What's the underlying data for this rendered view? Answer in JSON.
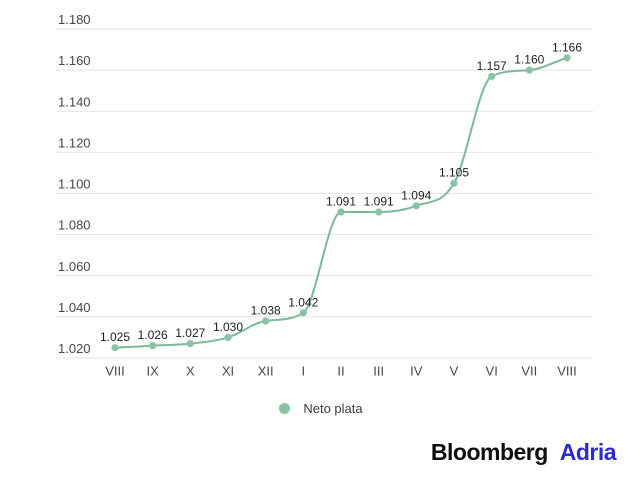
{
  "chart_data": {
    "type": "line",
    "title": "",
    "xlabel": "",
    "ylabel": "",
    "categories": [
      "VIII",
      "IX",
      "X",
      "XI",
      "XII",
      "I",
      "II",
      "III",
      "IV",
      "V",
      "VI",
      "VII",
      "VIII"
    ],
    "series": [
      {
        "name": "Neto plata",
        "values": [
          1025,
          1026,
          1027,
          1030,
          1038,
          1042,
          1091,
          1091,
          1094,
          1105,
          1157,
          1160,
          1166
        ],
        "value_labels": [
          "1.025",
          "1.026",
          "1.027",
          "1.030",
          "1.038",
          "1.042",
          "1.091",
          "1.091",
          "1.094",
          "1.105",
          "1.157",
          "1.160",
          "1.166"
        ]
      }
    ],
    "y_axis": {
      "min": 1020,
      "max": 1180,
      "step": 20,
      "tick_labels": [
        "1.020",
        "1.040",
        "1.060",
        "1.080",
        "1.100",
        "1.120",
        "1.140",
        "1.160",
        "1.180"
      ]
    },
    "grid": true,
    "legend_position": "bottom",
    "colors": {
      "line": "#7cb99b",
      "marker": "#8ac2a6",
      "grid": "#e4e4e4",
      "axis_text": "#474747",
      "label_text": "#1f1f1f"
    }
  },
  "legend": {
    "label": "Neto plata"
  },
  "branding": {
    "bloomberg": "Bloomberg",
    "adria": "Adria",
    "bloomberg_color": "#0e0e0e",
    "adria_color": "#2b2ad2"
  }
}
